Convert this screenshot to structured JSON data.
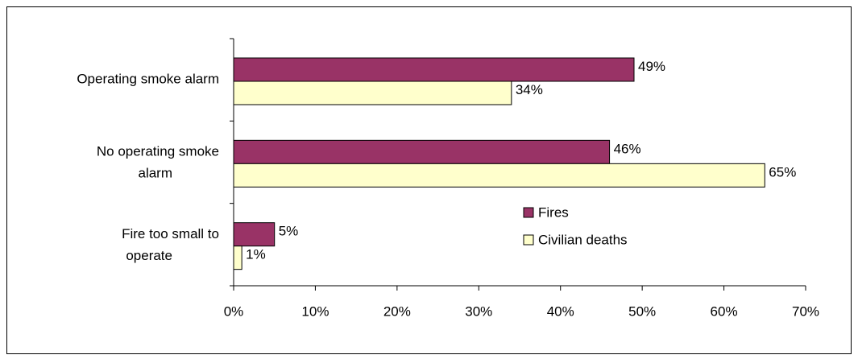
{
  "chart_data": {
    "type": "hbar",
    "categories": [
      "Operating smoke alarm",
      "No operating smoke alarm",
      "Fire too small to operate"
    ],
    "series": [
      {
        "name": "Fires",
        "color": "#993366",
        "values": [
          49,
          46,
          5
        ],
        "value_labels": [
          "49%",
          "46%",
          "5%"
        ]
      },
      {
        "name": "Civilian deaths",
        "color": "#ffffcc",
        "values": [
          34,
          65,
          1
        ],
        "value_labels": [
          "34%",
          "65%",
          "1%"
        ]
      }
    ],
    "xlim": [
      0,
      70
    ],
    "xticks": [
      {
        "value": 0,
        "label": "0%"
      },
      {
        "value": 10,
        "label": "10%"
      },
      {
        "value": 20,
        "label": "20%"
      },
      {
        "value": 30,
        "label": "30%"
      },
      {
        "value": 40,
        "label": "40%"
      },
      {
        "value": 50,
        "label": "50%"
      },
      {
        "value": 60,
        "label": "60%"
      },
      {
        "value": 70,
        "label": "70%"
      }
    ],
    "legend": "center"
  }
}
